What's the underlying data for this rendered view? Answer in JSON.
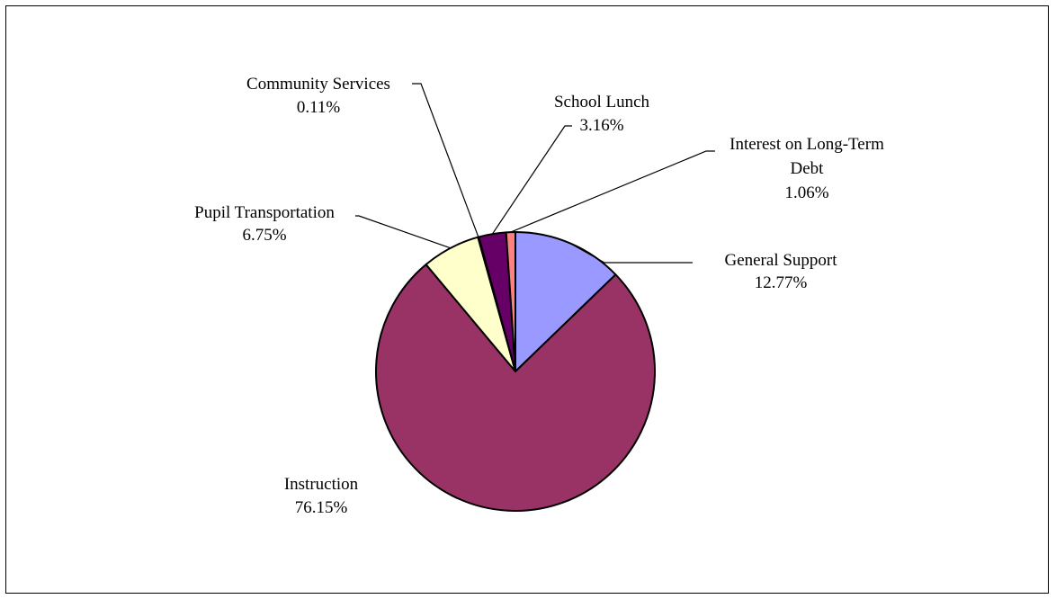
{
  "chart_data": {
    "type": "pie",
    "title": "",
    "legend": "none",
    "slices": [
      {
        "label": "General Support",
        "value_label": "12.77%",
        "value": 12.77,
        "color": "#9999ff"
      },
      {
        "label": "Instruction",
        "value_label": "76.15%",
        "value": 76.15,
        "color": "#993366"
      },
      {
        "label": "Pupil Transportation",
        "value_label": "6.75%",
        "value": 6.75,
        "color": "#ffffcc"
      },
      {
        "label": "Community Services",
        "value_label": "0.11%",
        "value": 0.11,
        "color": "#ccffff"
      },
      {
        "label": "School Lunch",
        "value_label": "3.16%",
        "value": 3.16,
        "color": "#660066"
      },
      {
        "label": "Interest on Long-Term Debt",
        "value_label": "1.06%",
        "value": 1.06,
        "color": "#ff8080"
      }
    ]
  }
}
